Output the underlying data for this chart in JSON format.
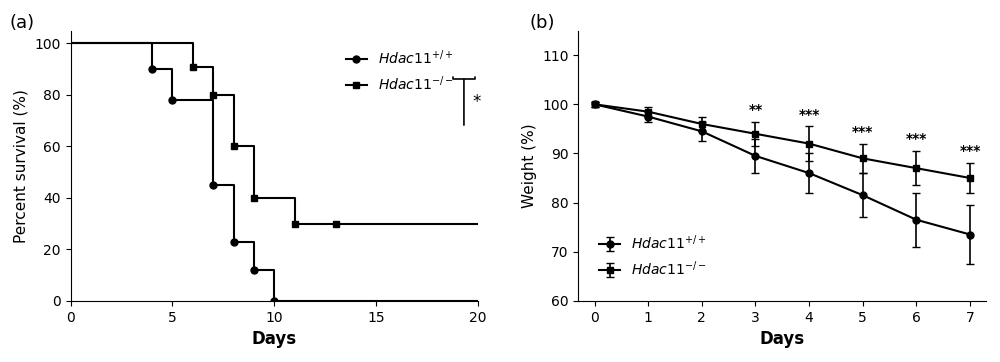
{
  "panel_a": {
    "label": "(a)",
    "xlabel": "Days",
    "ylabel": "Percent survival (%)",
    "xlim": [
      0,
      20
    ],
    "ylim": [
      0,
      105
    ],
    "xticks": [
      0,
      5,
      10,
      15,
      20
    ],
    "yticks": [
      0,
      20,
      40,
      60,
      80,
      100
    ],
    "wt_x": [
      0,
      4,
      4,
      5,
      5,
      7,
      7,
      8,
      8,
      9,
      9,
      10,
      10,
      20
    ],
    "wt_y": [
      100,
      100,
      90,
      90,
      78,
      78,
      45,
      45,
      23,
      23,
      12,
      12,
      0,
      0
    ],
    "ko_x": [
      0,
      6,
      6,
      7,
      7,
      8,
      8,
      9,
      9,
      11,
      11,
      13,
      13,
      20
    ],
    "ko_y": [
      100,
      100,
      91,
      91,
      80,
      80,
      60,
      60,
      40,
      40,
      30,
      30,
      30,
      30
    ],
    "wt_marker_x": [
      4,
      5,
      7,
      8,
      9,
      10
    ],
    "wt_marker_y": [
      90,
      78,
      45,
      23,
      12,
      0
    ],
    "ko_marker_x": [
      6,
      7,
      8,
      9,
      11,
      13
    ],
    "ko_marker_y": [
      91,
      80,
      60,
      40,
      30,
      30
    ],
    "wt_label": "$Hdac11^{+/+}$",
    "ko_label": "$Hdac11^{-/-}$",
    "sig_label": "*",
    "color": "#000000"
  },
  "panel_b": {
    "label": "(b)",
    "xlabel": "Days",
    "ylabel": "Weight (%)",
    "xlim": [
      -0.3,
      7.3
    ],
    "ylim": [
      60,
      115
    ],
    "xticks": [
      0,
      1,
      2,
      3,
      4,
      5,
      6,
      7
    ],
    "yticks": [
      60,
      70,
      80,
      90,
      100,
      110
    ],
    "wt_x": [
      0,
      1,
      2,
      3,
      4,
      5,
      6,
      7
    ],
    "wt_y": [
      100,
      97.5,
      94.5,
      89.5,
      86.0,
      81.5,
      76.5,
      73.5
    ],
    "wt_err": [
      0.5,
      1.0,
      2.0,
      3.5,
      4.0,
      4.5,
      5.5,
      6.0
    ],
    "ko_x": [
      0,
      1,
      2,
      3,
      4,
      5,
      6,
      7
    ],
    "ko_y": [
      100,
      98.5,
      96.0,
      94.0,
      92.0,
      89.0,
      87.0,
      85.0
    ],
    "ko_err": [
      0.5,
      1.0,
      1.5,
      2.5,
      3.5,
      3.0,
      3.5,
      3.0
    ],
    "sig_labels": [
      "",
      "",
      "",
      "**",
      "***",
      "***",
      "***",
      "***"
    ],
    "wt_label": "$Hdac11^{+/+}$",
    "ko_label": "$Hdac11^{-/-}$",
    "color": "#000000"
  }
}
